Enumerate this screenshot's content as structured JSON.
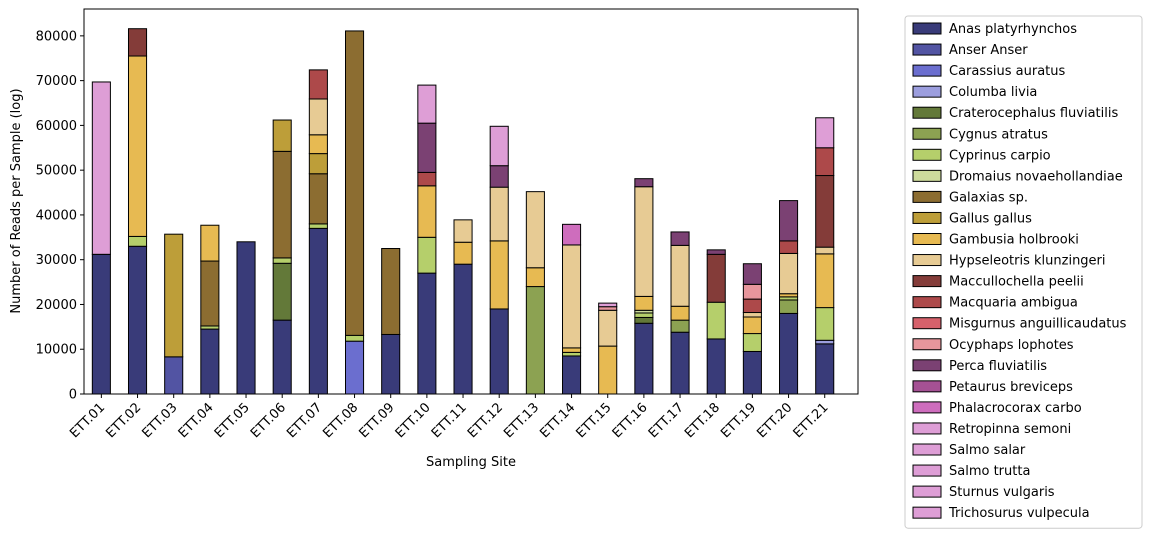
{
  "chart_data": {
    "type": "bar",
    "stacked": true,
    "xlabel": "Sampling Site",
    "ylabel": "Number of Reads per Sample (log)",
    "ylim": [
      0,
      86000
    ],
    "yticks": [
      0,
      10000,
      20000,
      30000,
      40000,
      50000,
      60000,
      70000,
      80000
    ],
    "grid": false,
    "legend_position": "outside-right",
    "categories": [
      "ETT.01",
      "ETT.02",
      "ETT.03",
      "ETT.04",
      "ETT.05",
      "ETT.06",
      "ETT.07",
      "ETT.08",
      "ETT.09",
      "ETT.10",
      "ETT.11",
      "ETT.12",
      "ETT.13",
      "ETT.14",
      "ETT.15",
      "ETT.16",
      "ETT.17",
      "ETT.18",
      "ETT.19",
      "ETT.20",
      "ETT.21"
    ],
    "series": [
      {
        "name": "Anas platyrhynchos",
        "color": "#393b79",
        "values": [
          31200,
          33000,
          0,
          14500,
          34000,
          16500,
          37000,
          0,
          13300,
          27000,
          29000,
          19000,
          0,
          8500,
          0,
          15800,
          13800,
          12300,
          9500,
          18000,
          11200
        ]
      },
      {
        "name": "Anser Anser",
        "color": "#5254a3",
        "values": [
          0,
          0,
          8300,
          0,
          0,
          0,
          0,
          0,
          0,
          0,
          0,
          0,
          0,
          0,
          0,
          0,
          0,
          0,
          0,
          0,
          0
        ]
      },
      {
        "name": "Carassius auratus",
        "color": "#6b6ecf",
        "values": [
          0,
          0,
          0,
          0,
          0,
          0,
          0,
          11800,
          0,
          0,
          0,
          0,
          0,
          0,
          0,
          0,
          0,
          0,
          0,
          0,
          0
        ]
      },
      {
        "name": "Columba livia",
        "color": "#9c9ede",
        "values": [
          0,
          0,
          0,
          0,
          0,
          0,
          0,
          0,
          0,
          0,
          0,
          0,
          0,
          0,
          0,
          0,
          0,
          0,
          0,
          0,
          800
        ]
      },
      {
        "name": "Craterocephalus fluviatilis",
        "color": "#637939",
        "values": [
          0,
          0,
          0,
          0,
          0,
          12700,
          0,
          0,
          0,
          0,
          0,
          0,
          0,
          0,
          0,
          1300,
          0,
          0,
          0,
          0,
          0
        ]
      },
      {
        "name": "Cygnus atratus",
        "color": "#8ca252",
        "values": [
          0,
          0,
          0,
          0,
          0,
          0,
          0,
          0,
          0,
          0,
          0,
          0,
          24000,
          0,
          0,
          0,
          2700,
          0,
          0,
          3000,
          0
        ]
      },
      {
        "name": "Cyprinus carpio",
        "color": "#b5cf6b",
        "values": [
          0,
          2200,
          0,
          700,
          0,
          1200,
          1000,
          1300,
          0,
          8000,
          0,
          0,
          0,
          800,
          0,
          1000,
          0,
          8200,
          4000,
          700,
          7300
        ]
      },
      {
        "name": "Dromaius novaehollandiae",
        "color": "#cedb9c",
        "values": [
          0,
          0,
          0,
          0,
          0,
          0,
          0,
          0,
          0,
          0,
          0,
          0,
          0,
          0,
          0,
          600,
          0,
          0,
          0,
          0,
          0
        ]
      },
      {
        "name": "Galaxias sp.",
        "color": "#8c6d31",
        "values": [
          0,
          0,
          0,
          14500,
          0,
          23800,
          11200,
          68000,
          19200,
          0,
          0,
          0,
          0,
          0,
          0,
          0,
          0,
          0,
          0,
          0,
          0
        ]
      },
      {
        "name": "Gallus gallus",
        "color": "#bd9e39",
        "values": [
          0,
          0,
          27400,
          0,
          0,
          7000,
          4500,
          0,
          0,
          0,
          0,
          0,
          0,
          0,
          0,
          0,
          0,
          0,
          0,
          0,
          0
        ]
      },
      {
        "name": "Gambusia holbrooki",
        "color": "#e7ba52",
        "values": [
          0,
          40300,
          0,
          8000,
          0,
          0,
          4200,
          0,
          0,
          11500,
          4900,
          15200,
          4200,
          1000,
          10700,
          3100,
          3100,
          0,
          3700,
          700,
          12000
        ]
      },
      {
        "name": "Hypseleotris klunzingeri",
        "color": "#e7cb94",
        "values": [
          0,
          0,
          0,
          0,
          0,
          0,
          8000,
          0,
          0,
          0,
          5000,
          12000,
          17000,
          23000,
          8000,
          24500,
          13600,
          0,
          1000,
          9000,
          1500
        ]
      },
      {
        "name": "Maccullochella peelii",
        "color": "#843c39",
        "values": [
          0,
          6100,
          0,
          0,
          0,
          0,
          0,
          0,
          0,
          0,
          0,
          0,
          0,
          0,
          0,
          0,
          0,
          10700,
          0,
          0,
          16000
        ]
      },
      {
        "name": "Macquaria ambigua",
        "color": "#ad494a",
        "values": [
          0,
          0,
          0,
          0,
          0,
          0,
          6500,
          0,
          0,
          3000,
          0,
          0,
          0,
          0,
          0,
          0,
          0,
          0,
          3000,
          2800,
          6200
        ]
      },
      {
        "name": "Misgurnus anguillicaudatus",
        "color": "#d6616b",
        "values": [
          0,
          0,
          0,
          0,
          0,
          0,
          0,
          0,
          0,
          0,
          0,
          0,
          0,
          0,
          0,
          0,
          0,
          0,
          0,
          0,
          0
        ]
      },
      {
        "name": "Ocyphaps lophotes",
        "color": "#e7969c",
        "values": [
          0,
          0,
          0,
          0,
          0,
          0,
          0,
          0,
          0,
          0,
          0,
          0,
          0,
          0,
          800,
          0,
          0,
          0,
          3300,
          0,
          0
        ]
      },
      {
        "name": "Perca fluviatilis",
        "color": "#7b4173",
        "values": [
          0,
          0,
          0,
          0,
          0,
          0,
          0,
          0,
          0,
          11000,
          0,
          4800,
          0,
          0,
          0,
          1800,
          3000,
          1000,
          4600,
          9000,
          0
        ]
      },
      {
        "name": "Petaurus breviceps",
        "color": "#a55194",
        "values": [
          0,
          0,
          0,
          0,
          0,
          0,
          0,
          0,
          0,
          0,
          0,
          0,
          0,
          0,
          0,
          0,
          0,
          0,
          0,
          0,
          0
        ]
      },
      {
        "name": "Phalacrocorax carbo",
        "color": "#ce6dbd",
        "values": [
          0,
          0,
          0,
          0,
          0,
          0,
          0,
          0,
          0,
          0,
          0,
          0,
          0,
          4600,
          0,
          0,
          0,
          0,
          0,
          0,
          0
        ]
      },
      {
        "name": "Retropinna semoni",
        "color": "#de9ed6",
        "values": [
          0,
          0,
          0,
          0,
          0,
          0,
          0,
          0,
          0,
          0,
          0,
          0,
          0,
          0,
          0,
          0,
          0,
          0,
          0,
          0,
          0
        ]
      },
      {
        "name": "Salmo salar",
        "color": "#de9ed6",
        "values": [
          0,
          0,
          0,
          0,
          0,
          0,
          0,
          0,
          0,
          0,
          0,
          0,
          0,
          0,
          0,
          0,
          0,
          0,
          0,
          0,
          0
        ]
      },
      {
        "name": "Salmo trutta",
        "color": "#de9ed6",
        "values": [
          0,
          0,
          0,
          0,
          0,
          0,
          0,
          0,
          0,
          0,
          0,
          0,
          0,
          0,
          0,
          0,
          0,
          0,
          0,
          0,
          0
        ]
      },
      {
        "name": "Sturnus vulgaris",
        "color": "#de9ed6",
        "values": [
          38500,
          0,
          0,
          0,
          0,
          0,
          0,
          0,
          0,
          8500,
          0,
          8800,
          0,
          0,
          800,
          0,
          0,
          0,
          0,
          0,
          6700
        ]
      },
      {
        "name": "Trichosurus vulpecula",
        "color": "#de9ed6",
        "values": [
          0,
          0,
          0,
          0,
          0,
          0,
          0,
          0,
          0,
          0,
          0,
          0,
          0,
          0,
          0,
          0,
          0,
          0,
          0,
          0,
          0
        ]
      }
    ]
  }
}
